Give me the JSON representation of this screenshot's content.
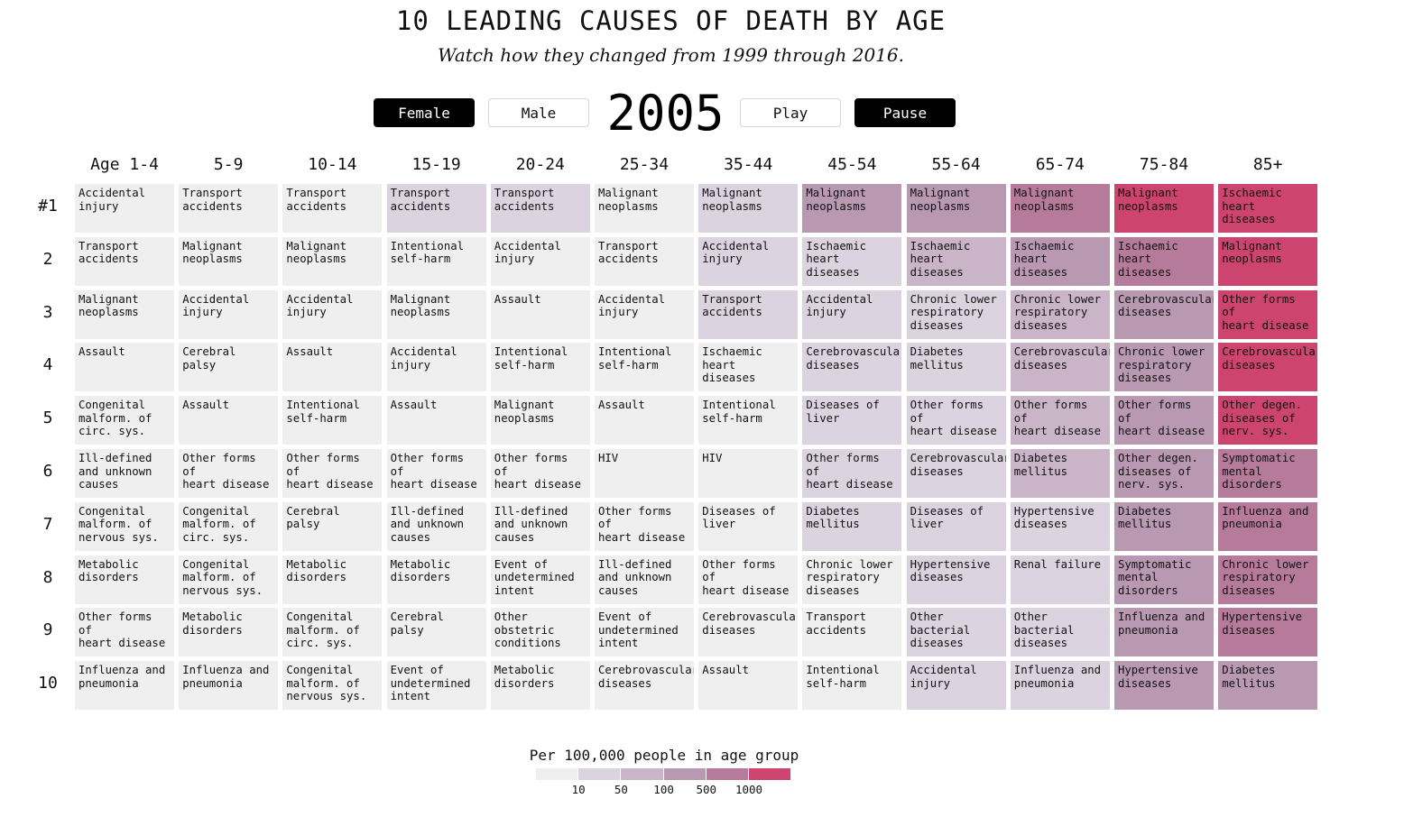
{
  "header": {
    "title": "10 LEADING CAUSES OF DEATH BY AGE",
    "subtitle": "Watch how they changed from 1999 through 2016."
  },
  "controls": {
    "female_label": "Female",
    "male_label": "Male",
    "year": "2005",
    "play_label": "Play",
    "pause_label": "Pause",
    "active": [
      "Female",
      "Pause"
    ]
  },
  "colors": {
    "levels": [
      "#efefef",
      "#dbd3df",
      "#c9b4c8",
      "#b998b2",
      "#b67b9a",
      "#cd4470"
    ]
  },
  "chart_data": {
    "type": "table",
    "title": "10 LEADING CAUSES OF DEATH BY AGE",
    "subtitle": "Watch how they changed from 1999 through 2016.",
    "year": "2005",
    "sex": "Female",
    "columns": [
      "Age 1-4",
      "5-9",
      "10-14",
      "15-19",
      "20-24",
      "25-34",
      "35-44",
      "45-54",
      "55-64",
      "65-74",
      "75-84",
      "85+"
    ],
    "rows": [
      "#1",
      "2",
      "3",
      "4",
      "5",
      "6",
      "7",
      "8",
      "9",
      "10"
    ],
    "cells": [
      [
        [
          "Accidental\ninjury",
          0
        ],
        [
          "Transport\naccidents",
          0
        ],
        [
          "Transport\naccidents",
          0
        ],
        [
          "Transport\naccidents",
          1
        ],
        [
          "Transport\naccidents",
          1
        ],
        [
          "Malignant\nneoplasms",
          0
        ],
        [
          "Malignant\nneoplasms",
          1
        ],
        [
          "Malignant\nneoplasms",
          3
        ],
        [
          "Malignant\nneoplasms",
          3
        ],
        [
          "Malignant\nneoplasms",
          4
        ],
        [
          "Malignant\nneoplasms",
          5
        ],
        [
          "Ischaemic\nheart diseases",
          5
        ]
      ],
      [
        [
          "Transport\naccidents",
          0
        ],
        [
          "Malignant\nneoplasms",
          0
        ],
        [
          "Malignant\nneoplasms",
          0
        ],
        [
          "Intentional\nself-harm",
          0
        ],
        [
          "Accidental\ninjury",
          0
        ],
        [
          "Transport\naccidents",
          0
        ],
        [
          "Accidental\ninjury",
          1
        ],
        [
          "Ischaemic\nheart diseases",
          1
        ],
        [
          "Ischaemic\nheart diseases",
          2
        ],
        [
          "Ischaemic\nheart diseases",
          3
        ],
        [
          "Ischaemic\nheart diseases",
          4
        ],
        [
          "Malignant\nneoplasms",
          5
        ]
      ],
      [
        [
          "Malignant\nneoplasms",
          0
        ],
        [
          "Accidental\ninjury",
          0
        ],
        [
          "Accidental\ninjury",
          0
        ],
        [
          "Malignant\nneoplasms",
          0
        ],
        [
          "Assault",
          0
        ],
        [
          "Accidental\ninjury",
          0
        ],
        [
          "Transport\naccidents",
          1
        ],
        [
          "Accidental\ninjury",
          1
        ],
        [
          "Chronic lower\nrespiratory\ndiseases",
          1
        ],
        [
          "Chronic lower\nrespiratory\ndiseases",
          2
        ],
        [
          "Cerebrovascular\ndiseases",
          3
        ],
        [
          "Other forms of\nheart disease",
          5
        ]
      ],
      [
        [
          "Assault",
          0
        ],
        [
          "Cerebral palsy",
          0
        ],
        [
          "Assault",
          0
        ],
        [
          "Accidental\ninjury",
          0
        ],
        [
          "Intentional\nself-harm",
          0
        ],
        [
          "Intentional\nself-harm",
          0
        ],
        [
          "Ischaemic\nheart diseases",
          0
        ],
        [
          "Cerebrovascular\ndiseases",
          1
        ],
        [
          "Diabetes\nmellitus",
          1
        ],
        [
          "Cerebrovascular\ndiseases",
          2
        ],
        [
          "Chronic lower\nrespiratory\ndiseases",
          3
        ],
        [
          "Cerebrovascular\ndiseases",
          5
        ]
      ],
      [
        [
          "Congenital\nmalform. of\ncirc. sys.",
          0
        ],
        [
          "Assault",
          0
        ],
        [
          "Intentional\nself-harm",
          0
        ],
        [
          "Assault",
          0
        ],
        [
          "Malignant\nneoplasms",
          0
        ],
        [
          "Assault",
          0
        ],
        [
          "Intentional\nself-harm",
          0
        ],
        [
          "Diseases of\nliver",
          1
        ],
        [
          "Other forms of\nheart disease",
          1
        ],
        [
          "Other forms of\nheart disease",
          2
        ],
        [
          "Other forms of\nheart disease",
          3
        ],
        [
          "Other degen.\ndiseases of\nnerv. sys.",
          5
        ]
      ],
      [
        [
          "Ill-defined\nand unknown\ncauses",
          0
        ],
        [
          "Other forms of\nheart disease",
          0
        ],
        [
          "Other forms of\nheart disease",
          0
        ],
        [
          "Other forms of\nheart disease",
          0
        ],
        [
          "Other forms of\nheart disease",
          0
        ],
        [
          "HIV",
          0
        ],
        [
          "HIV",
          0
        ],
        [
          "Other forms of\nheart disease",
          1
        ],
        [
          "Cerebrovascular\ndiseases",
          1
        ],
        [
          "Diabetes\nmellitus",
          2
        ],
        [
          "Other degen.\ndiseases of\nnerv. sys.",
          3
        ],
        [
          "Symptomatic\nmental\ndisorders",
          4
        ]
      ],
      [
        [
          "Congenital\nmalform. of\nnervous sys.",
          0
        ],
        [
          "Congenital\nmalform. of\ncirc. sys.",
          0
        ],
        [
          "Cerebral palsy",
          0
        ],
        [
          "Ill-defined\nand unknown\ncauses",
          0
        ],
        [
          "Ill-defined\nand unknown\ncauses",
          0
        ],
        [
          "Other forms of\nheart disease",
          0
        ],
        [
          "Diseases of\nliver",
          0
        ],
        [
          "Diabetes\nmellitus",
          1
        ],
        [
          "Diseases of\nliver",
          1
        ],
        [
          "Hypertensive\ndiseases",
          1
        ],
        [
          "Diabetes\nmellitus",
          3
        ],
        [
          "Influenza and\npneumonia",
          4
        ]
      ],
      [
        [
          "Metabolic\ndisorders",
          0
        ],
        [
          "Congenital\nmalform. of\nnervous sys.",
          0
        ],
        [
          "Metabolic\ndisorders",
          0
        ],
        [
          "Metabolic\ndisorders",
          0
        ],
        [
          "Event of\nundetermined\nintent",
          0
        ],
        [
          "Ill-defined\nand unknown\ncauses",
          0
        ],
        [
          "Other forms of\nheart disease",
          0
        ],
        [
          "Chronic lower\nrespiratory\ndiseases",
          0
        ],
        [
          "Hypertensive\ndiseases",
          1
        ],
        [
          "Renal failure",
          1
        ],
        [
          "Symptomatic\nmental\ndisorders",
          3
        ],
        [
          "Chronic lower\nrespiratory\ndiseases",
          4
        ]
      ],
      [
        [
          "Other forms of\nheart disease",
          0
        ],
        [
          "Metabolic\ndisorders",
          0
        ],
        [
          "Congenital\nmalform. of\ncirc. sys.",
          0
        ],
        [
          "Cerebral palsy",
          0
        ],
        [
          "Other\nobstetric\nconditions",
          0
        ],
        [
          "Event of\nundetermined\nintent",
          0
        ],
        [
          "Cerebrovascular\ndiseases",
          0
        ],
        [
          "Transport\naccidents",
          0
        ],
        [
          "Other\nbacterial\ndiseases",
          1
        ],
        [
          "Other\nbacterial\ndiseases",
          1
        ],
        [
          "Influenza and\npneumonia",
          3
        ],
        [
          "Hypertensive\ndiseases",
          4
        ]
      ],
      [
        [
          "Influenza and\npneumonia",
          0
        ],
        [
          "Influenza and\npneumonia",
          0
        ],
        [
          "Congenital\nmalform. of\nnervous sys.",
          0
        ],
        [
          "Event of\nundetermined\nintent",
          0
        ],
        [
          "Metabolic\ndisorders",
          0
        ],
        [
          "Cerebrovascular\ndiseases",
          0
        ],
        [
          "Assault",
          0
        ],
        [
          "Intentional\nself-harm",
          0
        ],
        [
          "Accidental\ninjury",
          1
        ],
        [
          "Influenza and\npneumonia",
          1
        ],
        [
          "Hypertensive\ndiseases",
          3
        ],
        [
          "Diabetes\nmellitus",
          3
        ]
      ]
    ],
    "legend": {
      "title": "Per 100,000 people in age group",
      "ticks": [
        "10",
        "50",
        "100",
        "500",
        "1000"
      ]
    }
  }
}
